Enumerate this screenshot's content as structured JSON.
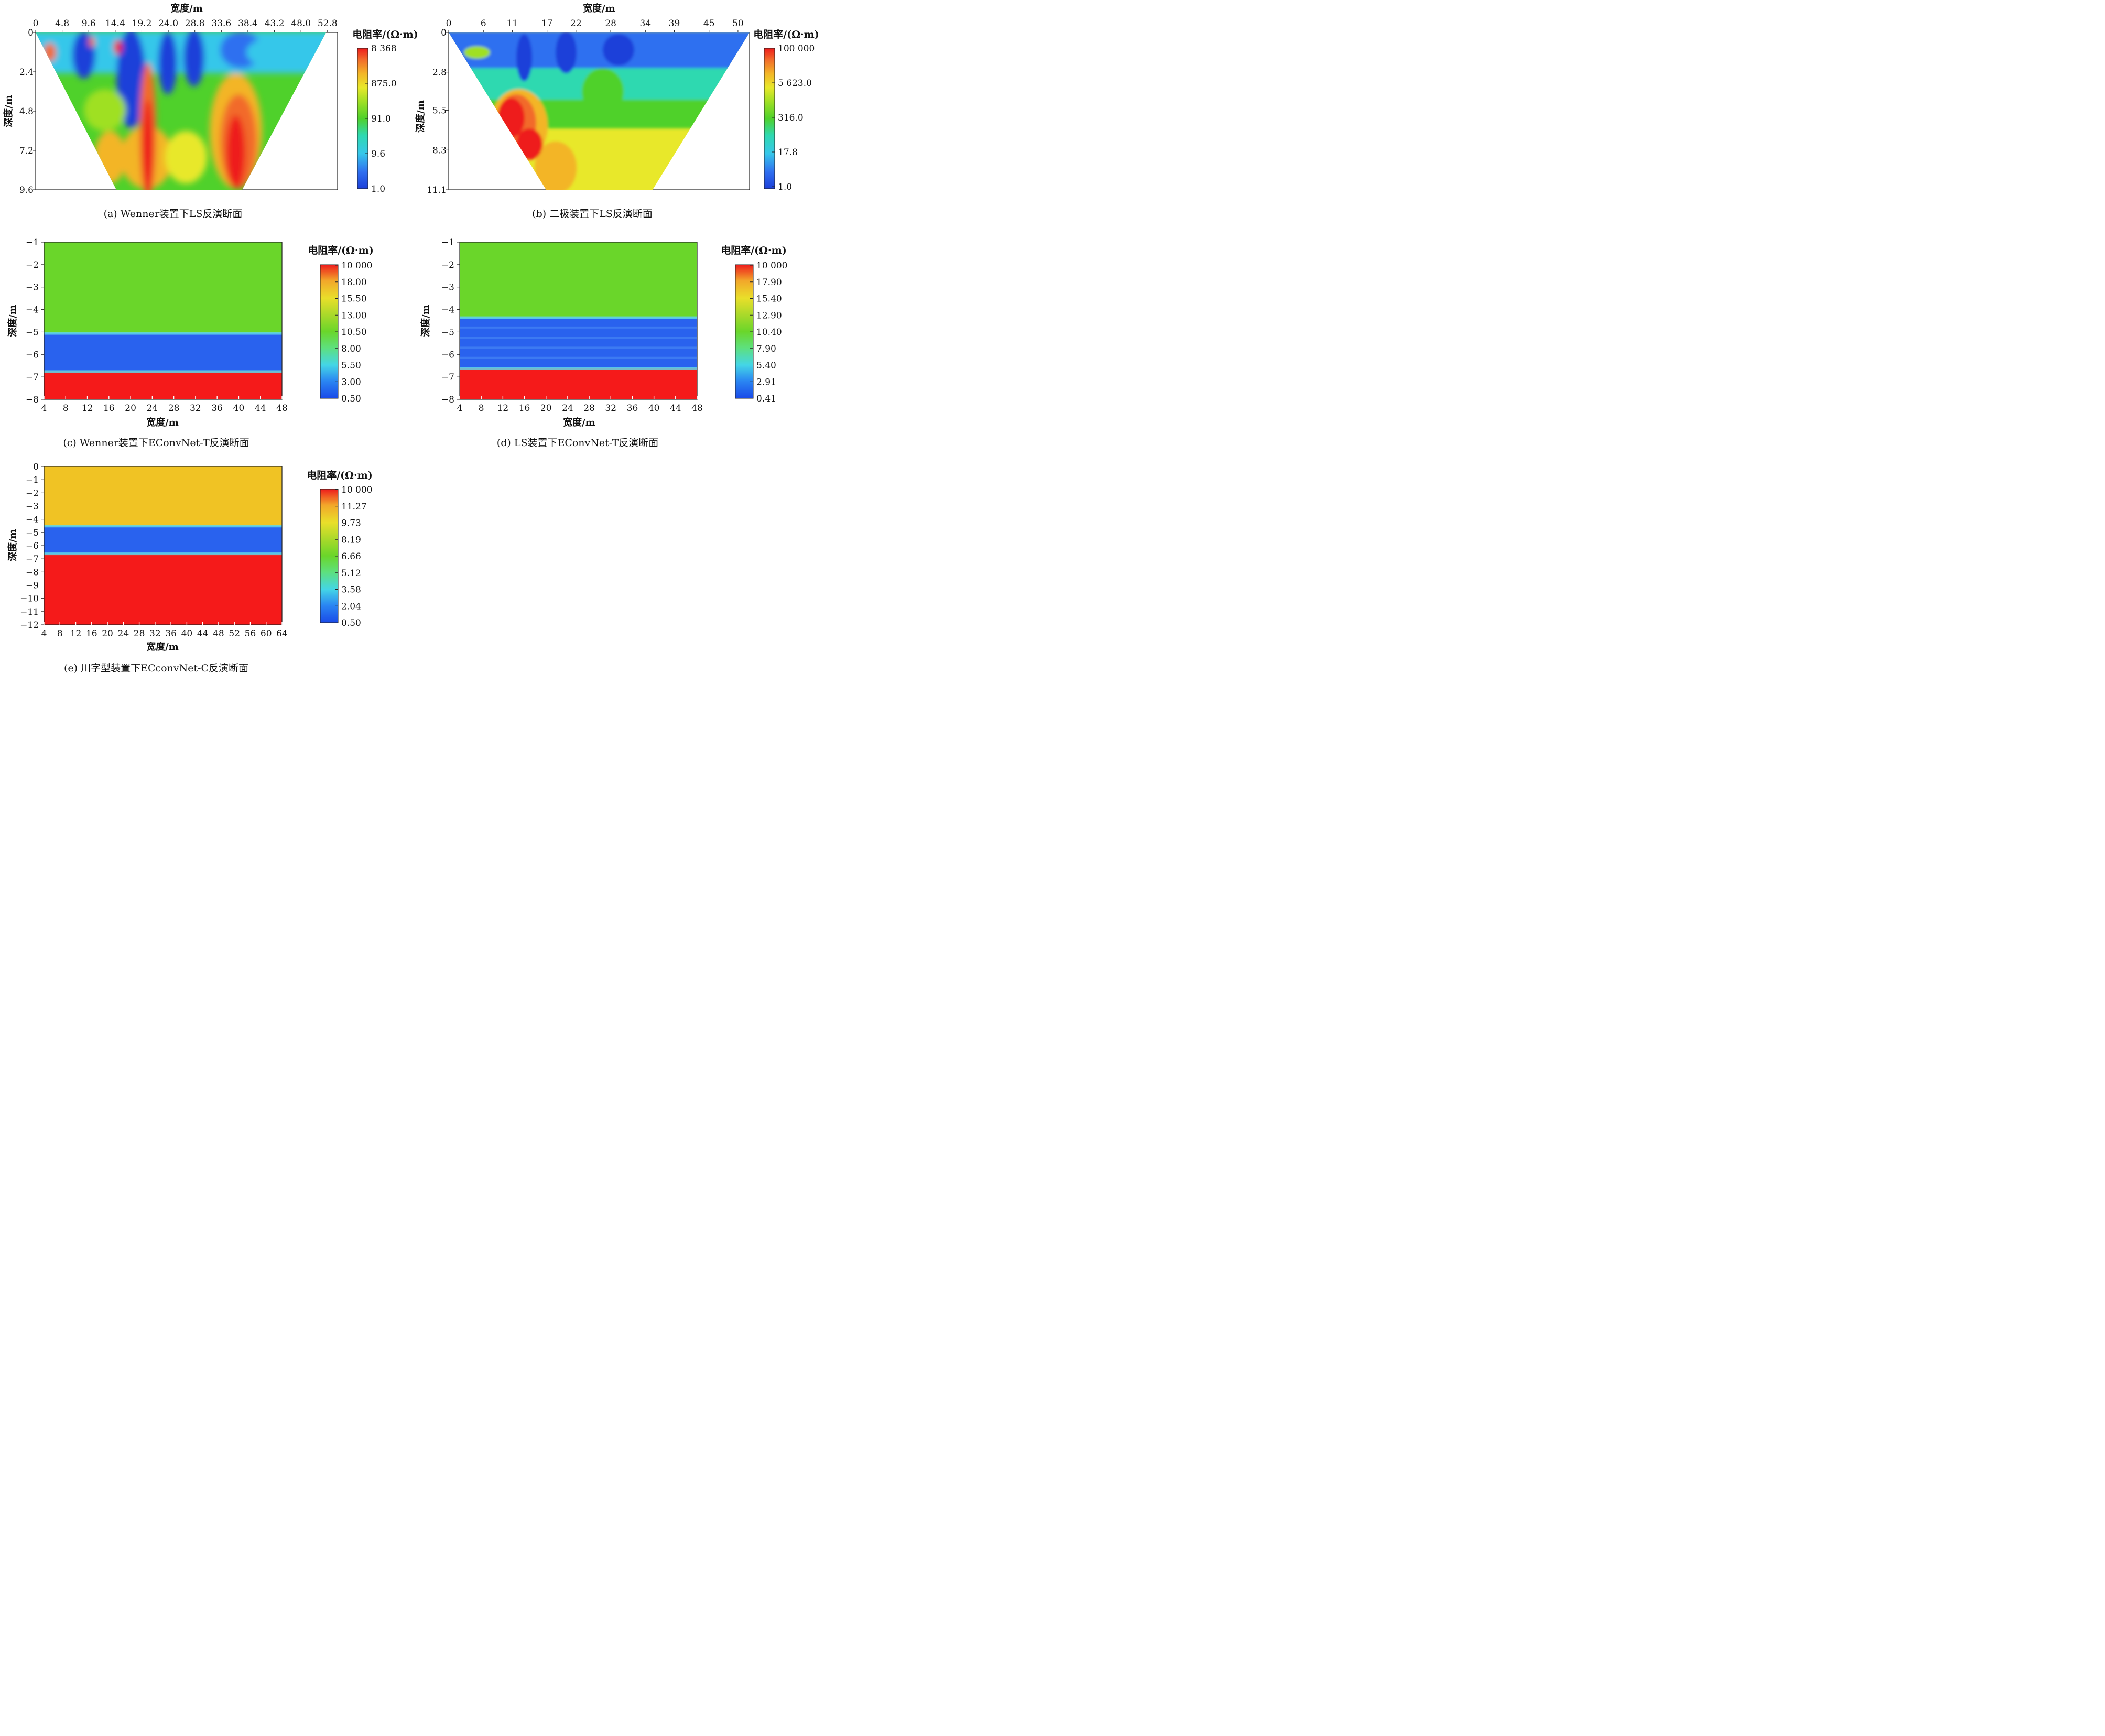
{
  "chart_data": [
    {
      "id": "a",
      "type": "heatmap",
      "caption": "(a)  Wenner装置下LS反演断面",
      "xlabel": "宽度/m",
      "ylabel": "深度/m",
      "x_ticks": [
        "0",
        "4.8",
        "9.6",
        "14.4",
        "19.2",
        "24.0",
        "28.8",
        "33.6",
        "38.4",
        "43.2",
        "48.0",
        "52.8"
      ],
      "x_tick_values": [
        0,
        4.8,
        9.6,
        14.4,
        19.2,
        24.0,
        28.8,
        33.6,
        38.4,
        43.2,
        48.0,
        52.8
      ],
      "y_ticks": [
        "0",
        "2.4",
        "4.8",
        "7.2",
        "9.6"
      ],
      "y_tick_values": [
        0,
        2.4,
        4.8,
        7.2,
        9.6
      ],
      "xlim": [
        0,
        55
      ],
      "ylim": [
        0,
        9.6
      ],
      "colorbar_title": "电阻率/(Ω·m)",
      "colorbar_ticks": [
        "8 368",
        "875.0",
        "91.0",
        "9.6",
        "1.0"
      ],
      "colorbar_log_values": [
        8368,
        875.0,
        91.0,
        9.6,
        1.0
      ],
      "description_layers": [
        {
          "region": "shallow 0-1.5 m",
          "resistivity_range": "1.0-91.0",
          "dominant": "low (blue/cyan) with small high spots near x=14-15 m"
        },
        {
          "region": "high-resistivity column",
          "x_center": 20.5,
          "depth": "1.5-9.6 m",
          "resistivity_range": "875.0-8 368"
        },
        {
          "region": "high-resistivity column",
          "x_center": 36.5,
          "depth": "3.0-9.6 m",
          "resistivity_range": "875.0-8 368"
        },
        {
          "region": "mid depth background",
          "resistivity_range": "9.6-91.0"
        }
      ]
    },
    {
      "id": "b",
      "type": "heatmap",
      "caption": "(b)  二极装置下LS反演断面",
      "xlabel": "宽度/m",
      "ylabel": "深度/m",
      "x_ticks": [
        "0",
        "6",
        "11",
        "17",
        "22",
        "28",
        "34",
        "39",
        "45",
        "50"
      ],
      "x_tick_values": [
        0,
        6,
        11,
        17,
        22,
        28,
        34,
        39,
        45,
        50
      ],
      "y_ticks": [
        "0",
        "2.8",
        "5.5",
        "8.3",
        "11.1"
      ],
      "y_tick_values": [
        0,
        2.8,
        5.5,
        8.3,
        11.1
      ],
      "xlim": [
        0,
        52
      ],
      "ylim": [
        0,
        11.1
      ],
      "colorbar_title": "电阻率/(Ω·m)",
      "colorbar_ticks": [
        "100 000",
        "5 623.0",
        "316.0",
        "17.8",
        "1.0"
      ],
      "colorbar_log_values": [
        100000,
        5623.0,
        316.0,
        17.8,
        1.0
      ],
      "description_layers": [
        {
          "region": "0-2.8 m",
          "resistivity_range": "1.0-17.8"
        },
        {
          "region": "2.8-6.6 m",
          "resistivity_range": "17.8-316.0"
        },
        {
          "region": "high anomaly x 9-17 m, 4-9 m",
          "resistivity_range": "5 623.0-100 000"
        },
        {
          "region": "below 6.6 m",
          "resistivity_range": "~5 623.0"
        }
      ]
    },
    {
      "id": "c",
      "type": "heatmap",
      "caption": "(c)  Wenner装置下EConvNet-T反演断面",
      "xlabel": "宽度/m",
      "ylabel": "深度/m",
      "x_ticks": [
        "4",
        "8",
        "12",
        "16",
        "20",
        "24",
        "28",
        "32",
        "36",
        "40",
        "44",
        "48"
      ],
      "x_tick_values": [
        4,
        8,
        12,
        16,
        20,
        24,
        28,
        32,
        36,
        40,
        44,
        48
      ],
      "y_ticks": [
        "−1",
        "−2",
        "−3",
        "−4",
        "−5",
        "−6",
        "−7",
        "−8"
      ],
      "y_tick_values": [
        -1,
        -2,
        -3,
        -4,
        -5,
        -6,
        -7,
        -8
      ],
      "xlim": [
        4,
        48
      ],
      "ylim": [
        -8,
        -1
      ],
      "colorbar_title": "电阻率/(Ω·m)",
      "colorbar_ticks": [
        "10 000",
        "18.00",
        "15.50",
        "13.00",
        "10.50",
        "8.00",
        "5.50",
        "3.00",
        "0.50"
      ],
      "layers": [
        {
          "top": -1,
          "bottom": -5.05,
          "color_value": 10.5
        },
        {
          "top": -5.05,
          "bottom": -6.75,
          "color_value": 1.0
        },
        {
          "top": -6.75,
          "bottom": -8,
          "color_value": 10000
        }
      ]
    },
    {
      "id": "d",
      "type": "heatmap",
      "caption": "(d)  LS装置下EConvNet-T反演断面",
      "xlabel": "宽度/m",
      "ylabel": "深度/m",
      "x_ticks": [
        "4",
        "8",
        "12",
        "16",
        "20",
        "24",
        "28",
        "32",
        "36",
        "40",
        "44",
        "48"
      ],
      "x_tick_values": [
        4,
        8,
        12,
        16,
        20,
        24,
        28,
        32,
        36,
        40,
        44,
        48
      ],
      "y_ticks": [
        "−1",
        "−2",
        "−3",
        "−4",
        "−5",
        "−6",
        "−7",
        "−8"
      ],
      "y_tick_values": [
        -1,
        -2,
        -3,
        -4,
        -5,
        -6,
        -7,
        -8
      ],
      "xlim": [
        4,
        48
      ],
      "ylim": [
        -8,
        -1
      ],
      "colorbar_title": "电阻率/(Ω·m)",
      "colorbar_ticks": [
        "10 000",
        "17.90",
        "15.40",
        "12.90",
        "10.40",
        "7.90",
        "5.40",
        "2.91",
        "0.41"
      ],
      "layers": [
        {
          "top": -1,
          "bottom": -4.35,
          "color_value": 10.4
        },
        {
          "top": -4.35,
          "bottom": -6.6,
          "color_value": 1.0
        },
        {
          "top": -6.6,
          "bottom": -8,
          "color_value": 10000
        }
      ]
    },
    {
      "id": "e",
      "type": "heatmap",
      "caption": "(e)  川字型装置下ECconvNet-C反演断面",
      "xlabel": "宽度/m",
      "ylabel": "深度/m",
      "x_ticks": [
        "4",
        "8",
        "12",
        "16",
        "20",
        "24",
        "28",
        "32",
        "36",
        "40",
        "44",
        "48",
        "52",
        "56",
        "60",
        "64"
      ],
      "x_tick_values": [
        4,
        8,
        12,
        16,
        20,
        24,
        28,
        32,
        36,
        40,
        44,
        48,
        52,
        56,
        60,
        64
      ],
      "y_ticks": [
        "0",
        "−1",
        "−2",
        "−3",
        "−4",
        "−5",
        "−6",
        "−7",
        "−8",
        "−9",
        "−10",
        "−11",
        "−12"
      ],
      "y_tick_values": [
        0,
        -1,
        -2,
        -3,
        -4,
        -5,
        -6,
        -7,
        -8,
        -9,
        -10,
        -11,
        -12
      ],
      "xlim": [
        4,
        64
      ],
      "ylim": [
        -12,
        0
      ],
      "colorbar_title": "电阻率/(Ω·m)",
      "colorbar_ticks": [
        "10 000",
        "11.27",
        "9.73",
        "8.19",
        "6.66",
        "5.12",
        "3.58",
        "2.04",
        "0.50"
      ],
      "layers": [
        {
          "top": 0,
          "bottom": -4.5,
          "color_value": 9.73
        },
        {
          "top": -4.5,
          "bottom": -6.6,
          "color_value": 1.0
        },
        {
          "top": -6.6,
          "bottom": -12,
          "color_value": 10000
        }
      ]
    }
  ]
}
